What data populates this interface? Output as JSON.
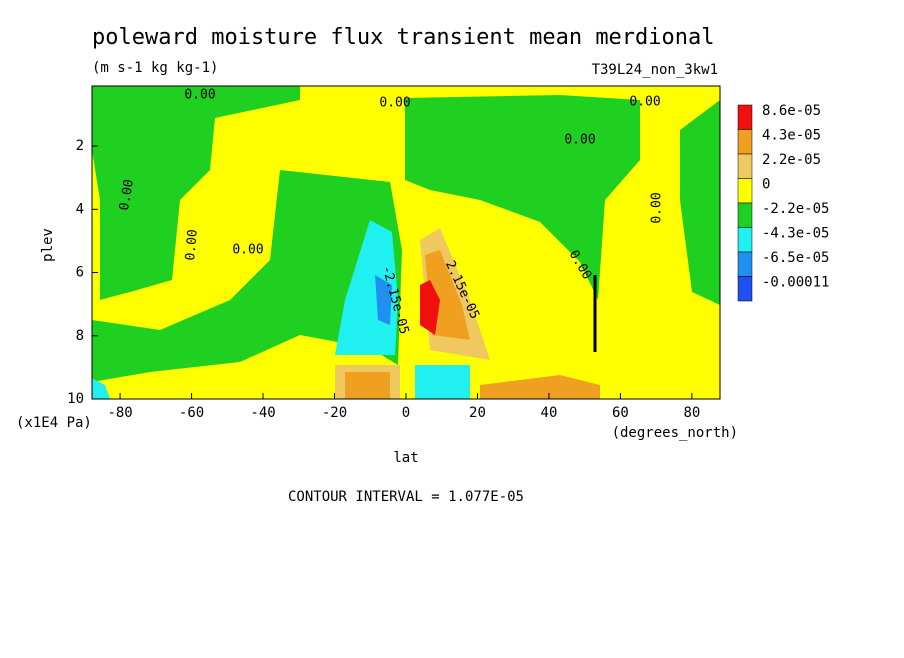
{
  "chart_data": {
    "type": "contour",
    "title": "poleward moisture flux transient mean merdional",
    "subtitle": "(m s-1 kg kg-1)",
    "run_label": "T39L24_non_3kw1",
    "x_label": "lat",
    "x_unit": "(degrees_north)",
    "y_label": "plev",
    "y_unit": "(x1E4 Pa)",
    "footer": "CONTOUR INTERVAL = 1.077E-05",
    "xlim": [
      -87.86,
      87.86
    ],
    "xticks": [
      -80,
      -60,
      -40,
      -20,
      0,
      20,
      40,
      60,
      80
    ],
    "ylim": [
      10,
      0.1
    ],
    "yticks": [
      2,
      4,
      6,
      8,
      10
    ],
    "levels": [
      {
        "value": 8.6e-05,
        "label": "8.6e-05"
      },
      {
        "value": 4.3e-05,
        "label": "4.3e-05"
      },
      {
        "value": 2.2e-05,
        "label": "2.2e-05"
      },
      0,
      {
        "value": -2.2e-05,
        "label": "-2.2e-05"
      },
      {
        "value": -4.3e-05,
        "label": "-4.3e-05"
      },
      {
        "value": -6.5e-05,
        "label": "-6.5e-05"
      },
      {
        "value": -0.00011,
        "label": "-0.00011"
      }
    ],
    "colors": [
      "#f01010",
      "#f0a020",
      "#f0c860",
      "#ffff00",
      "#20d020",
      "#20f0f0",
      "#2090f0",
      "#2050f0"
    ],
    "contour_labels": [
      "0.00",
      "0.00",
      "0.00",
      "0.00",
      "0.00",
      "0.00",
      "0.00",
      "0.00",
      "0.00",
      "-2.15e-05",
      "2.15e-05"
    ]
  }
}
